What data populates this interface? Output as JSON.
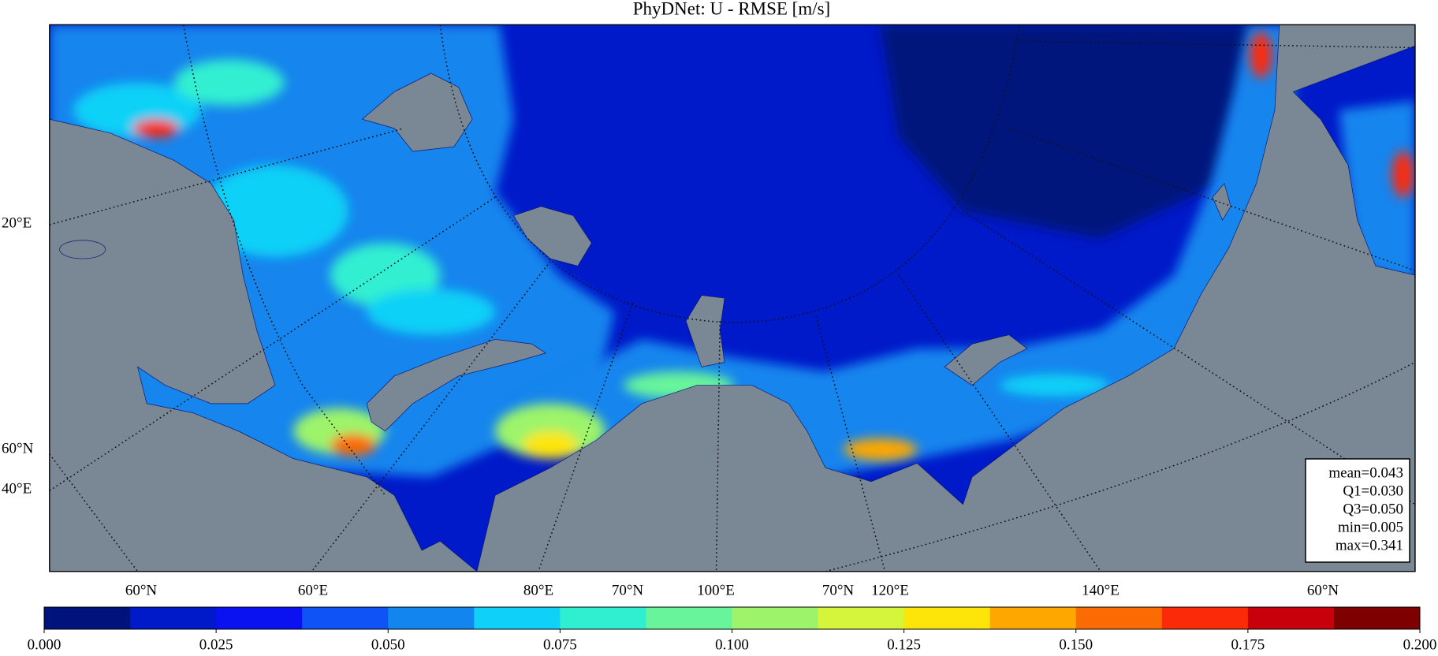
{
  "title": "PhyDNet: U - RMSE [m/s]",
  "graticule_labels": {
    "left": [
      "20°E",
      "60°N",
      "40°E"
    ],
    "bottom": [
      "60°N",
      "60°E",
      "80°E",
      "70°N",
      "100°E",
      "70°N",
      "120°E",
      "140°E",
      "60°N"
    ]
  },
  "stats": [
    "mean=0.043",
    "Q1=0.030",
    "Q3=0.050",
    "min=0.005",
    "max=0.341"
  ],
  "colorbar": {
    "levels": [
      0,
      0.0125,
      0.025,
      0.0375,
      0.05,
      0.0625,
      0.075,
      0.0875,
      0.1,
      0.1125,
      0.125,
      0.1375,
      0.15,
      0.1625,
      0.175,
      0.1875,
      0.2
    ],
    "colors": [
      "#00137d",
      "#0019c9",
      "#0a12f2",
      "#0f52f5",
      "#1385ee",
      "#0fd1f7",
      "#30efd1",
      "#68f49b",
      "#9df46a",
      "#d4f53a",
      "#fde50a",
      "#fda700",
      "#fc6a04",
      "#fb2b0a",
      "#c8000c",
      "#7f0000"
    ],
    "ticks": [
      {
        "value": 0,
        "label": "0.000"
      },
      {
        "value": 0.025,
        "label": "0.025"
      },
      {
        "value": 0.05,
        "label": "0.050"
      },
      {
        "value": 0.075,
        "label": "0.075"
      },
      {
        "value": 0.1,
        "label": "0.100"
      },
      {
        "value": 0.125,
        "label": "0.125"
      },
      {
        "value": 0.15,
        "label": "0.150"
      },
      {
        "value": 0.175,
        "label": "0.175"
      },
      {
        "value": 0.2,
        "label": "0.200"
      }
    ]
  }
}
